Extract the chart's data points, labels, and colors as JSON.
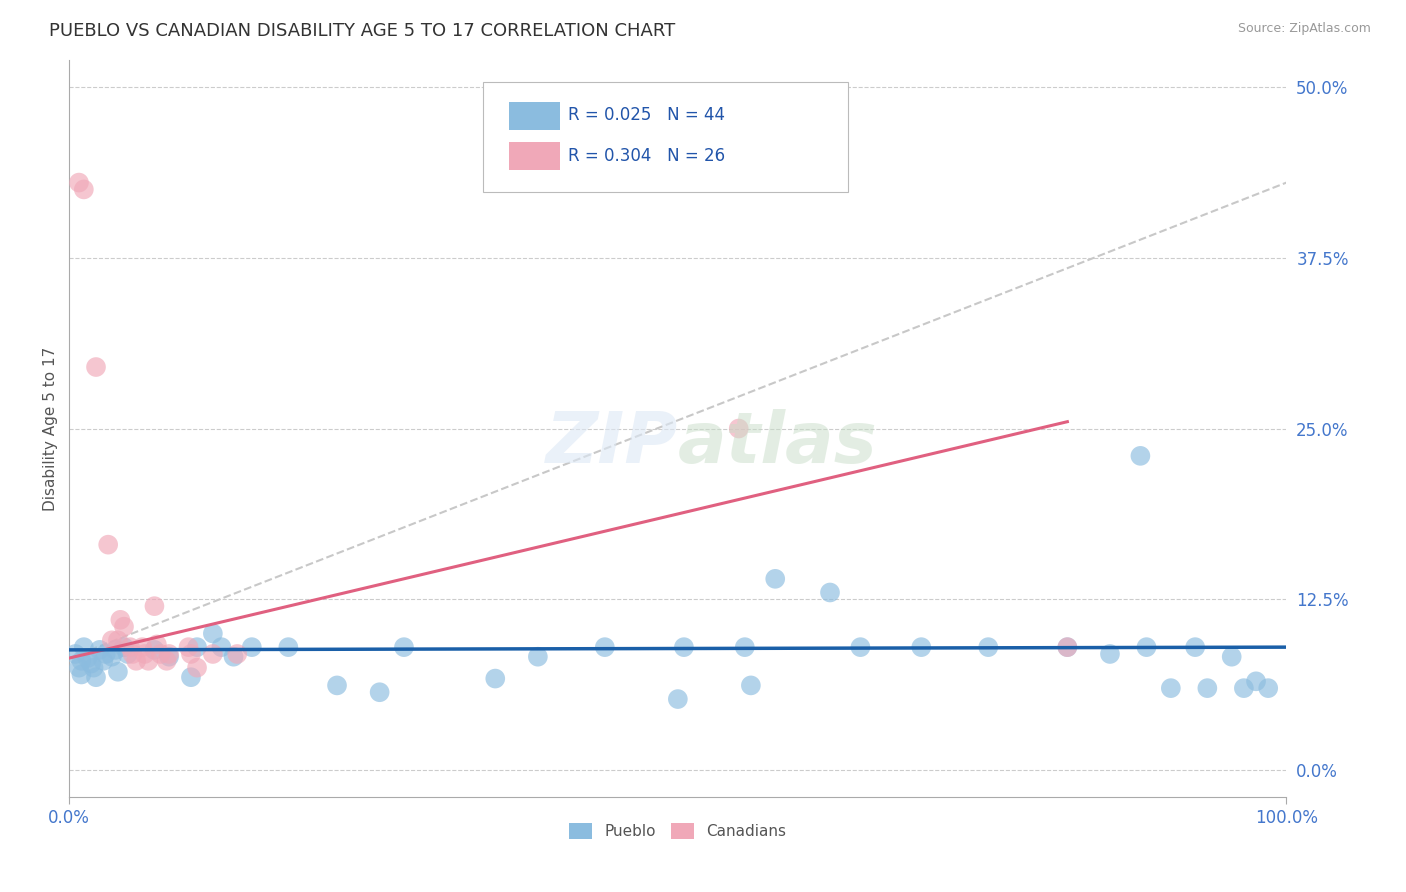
{
  "title": "PUEBLO VS CANADIAN DISABILITY AGE 5 TO 17 CORRELATION CHART",
  "source_text": "Source: ZipAtlas.com",
  "ylabel": "Disability Age 5 to 17",
  "xlim": [
    0,
    1.0
  ],
  "ylim": [
    -0.02,
    0.52
  ],
  "ytick_vals": [
    0.0,
    0.125,
    0.25,
    0.375,
    0.5
  ],
  "grid_color": "#cccccc",
  "background_color": "#ffffff",
  "pueblo_color": "#8bbcdf",
  "canadian_color": "#f0a8b8",
  "pueblo_line_color": "#1a5fa8",
  "canadian_line_color": "#e06080",
  "dashed_line_color": "#c8c8c8",
  "pueblo_points": [
    [
      0.005,
      0.085
    ],
    [
      0.008,
      0.075
    ],
    [
      0.01,
      0.08
    ],
    [
      0.01,
      0.07
    ],
    [
      0.012,
      0.09
    ],
    [
      0.015,
      0.082
    ],
    [
      0.018,
      0.078
    ],
    [
      0.02,
      0.075
    ],
    [
      0.022,
      0.068
    ],
    [
      0.025,
      0.088
    ],
    [
      0.028,
      0.08
    ],
    [
      0.03,
      0.085
    ],
    [
      0.035,
      0.083
    ],
    [
      0.038,
      0.088
    ],
    [
      0.04,
      0.072
    ],
    [
      0.045,
      0.09
    ],
    [
      0.048,
      0.085
    ],
    [
      0.07,
      0.088
    ],
    [
      0.082,
      0.083
    ],
    [
      0.1,
      0.068
    ],
    [
      0.105,
      0.09
    ],
    [
      0.118,
      0.1
    ],
    [
      0.125,
      0.09
    ],
    [
      0.135,
      0.083
    ],
    [
      0.15,
      0.09
    ],
    [
      0.18,
      0.09
    ],
    [
      0.22,
      0.062
    ],
    [
      0.255,
      0.057
    ],
    [
      0.275,
      0.09
    ],
    [
      0.35,
      0.067
    ],
    [
      0.385,
      0.083
    ],
    [
      0.44,
      0.09
    ],
    [
      0.5,
      0.052
    ],
    [
      0.505,
      0.09
    ],
    [
      0.555,
      0.09
    ],
    [
      0.56,
      0.062
    ],
    [
      0.58,
      0.14
    ],
    [
      0.625,
      0.13
    ],
    [
      0.65,
      0.09
    ],
    [
      0.7,
      0.09
    ],
    [
      0.755,
      0.09
    ],
    [
      0.82,
      0.09
    ],
    [
      0.855,
      0.085
    ],
    [
      0.88,
      0.23
    ],
    [
      0.885,
      0.09
    ],
    [
      0.905,
      0.06
    ],
    [
      0.925,
      0.09
    ],
    [
      0.935,
      0.06
    ],
    [
      0.955,
      0.083
    ],
    [
      0.965,
      0.06
    ],
    [
      0.975,
      0.065
    ],
    [
      0.985,
      0.06
    ]
  ],
  "canadian_points": [
    [
      0.008,
      0.43
    ],
    [
      0.012,
      0.425
    ],
    [
      0.022,
      0.295
    ],
    [
      0.032,
      0.165
    ],
    [
      0.035,
      0.095
    ],
    [
      0.04,
      0.095
    ],
    [
      0.042,
      0.11
    ],
    [
      0.045,
      0.105
    ],
    [
      0.05,
      0.09
    ],
    [
      0.052,
      0.085
    ],
    [
      0.055,
      0.08
    ],
    [
      0.06,
      0.09
    ],
    [
      0.062,
      0.085
    ],
    [
      0.065,
      0.08
    ],
    [
      0.07,
      0.12
    ],
    [
      0.072,
      0.092
    ],
    [
      0.075,
      0.085
    ],
    [
      0.08,
      0.08
    ],
    [
      0.082,
      0.085
    ],
    [
      0.098,
      0.09
    ],
    [
      0.1,
      0.085
    ],
    [
      0.105,
      0.075
    ],
    [
      0.118,
      0.085
    ],
    [
      0.138,
      0.085
    ],
    [
      0.55,
      0.25
    ],
    [
      0.82,
      0.09
    ]
  ],
  "pueblo_trend_x": [
    0.0,
    1.0
  ],
  "pueblo_trend_y": [
    0.088,
    0.09
  ],
  "canadian_trend_x": [
    0.0,
    0.82
  ],
  "canadian_trend_y": [
    0.082,
    0.255
  ],
  "dashed_trend_x": [
    0.0,
    1.0
  ],
  "dashed_trend_y": [
    0.082,
    0.43
  ]
}
